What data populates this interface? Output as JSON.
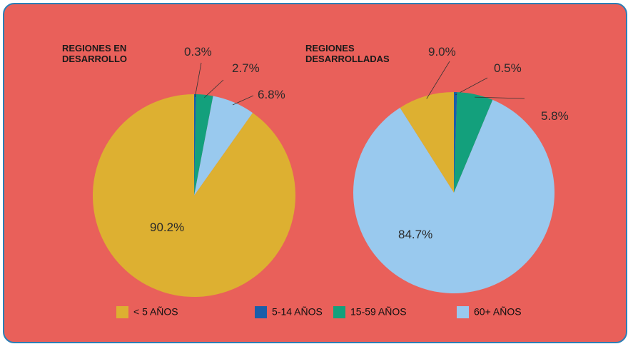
{
  "chart_data": [
    {
      "type": "pie",
      "title": "REGIONES EN DESARROLLO",
      "categories": [
        "< 5 AÑOS",
        "5-14 AÑOS",
        "15-59 AÑOS",
        "60+ AÑOS"
      ],
      "values": [
        90.2,
        0.3,
        2.7,
        6.8
      ],
      "value_labels": [
        "90.2%",
        "0.3%",
        "2.7%",
        "6.8%"
      ],
      "colors": [
        "#ddb031",
        "#1b5ea9",
        "#13a07c",
        "#99c9ee"
      ]
    },
    {
      "type": "pie",
      "title": "REGIONES DESARROLLADAS",
      "categories": [
        "< 5 AÑOS",
        "5-14 AÑOS",
        "15-59 AÑOS",
        "60+ AÑOS"
      ],
      "values": [
        9.0,
        0.5,
        5.8,
        84.7
      ],
      "value_labels": [
        "9.0%",
        "0.5%",
        "5.8%",
        "84.7%"
      ],
      "colors": [
        "#ddb031",
        "#1b5ea9",
        "#13a07c",
        "#99c9ee"
      ]
    }
  ]
}
